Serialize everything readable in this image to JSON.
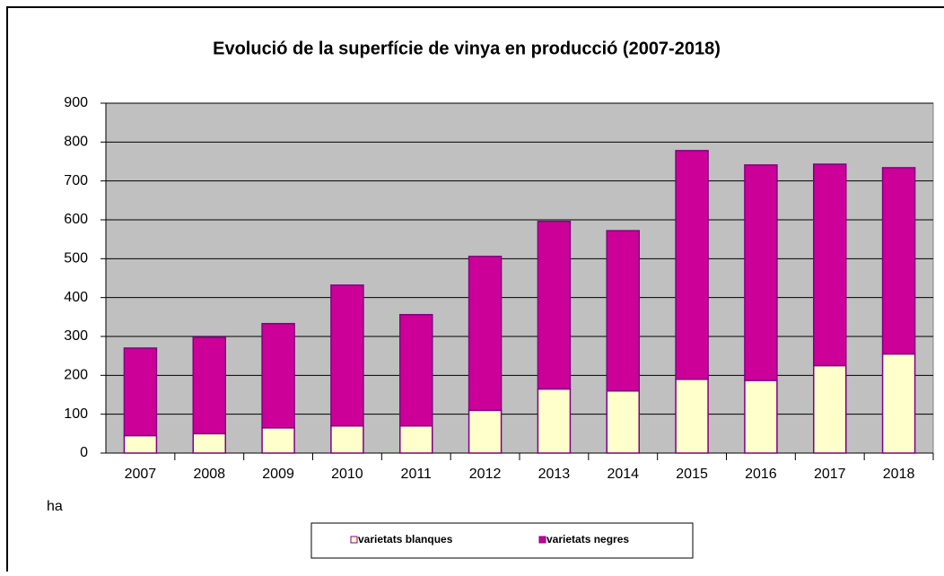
{
  "chart_data": {
    "type": "stacked_bar",
    "title": "Evolució de la superfície de vinya en producció (2007-2018)",
    "y_label": "ha",
    "categories": [
      "2007",
      "2008",
      "2009",
      "2010",
      "2011",
      "2012",
      "2013",
      "2014",
      "2015",
      "2016",
      "2017",
      "2018"
    ],
    "series": [
      {
        "name": "varietats blanques",
        "color": "#ffffcc",
        "values": [
          45,
          50,
          65,
          70,
          70,
          110,
          165,
          160,
          190,
          187,
          225,
          255
        ]
      },
      {
        "name": "varietats negres",
        "color": "#cc0099",
        "values": [
          225,
          248,
          268,
          362,
          286,
          396,
          431,
          412,
          588,
          554,
          518,
          479
        ]
      }
    ],
    "ylim": [
      0,
      900
    ],
    "yticks": [
      0,
      100,
      200,
      300,
      400,
      500,
      600,
      700,
      800,
      900
    ],
    "grid": true,
    "legend": "bottom"
  }
}
